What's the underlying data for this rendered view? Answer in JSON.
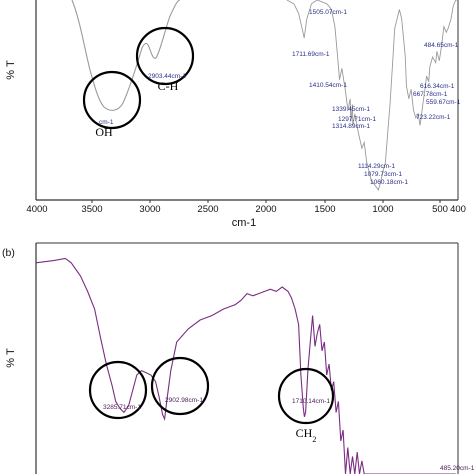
{
  "chart_data": [
    {
      "panel": "",
      "type": "line",
      "xlabel": "cm-1",
      "ylabel": "% T",
      "xlim": [
        4000,
        400
      ],
      "x_ticks": [
        "4000",
        "3500",
        "3000",
        "2500",
        "2000",
        "1500",
        "1000",
        "500",
        "400"
      ],
      "series_color": "#9a9a9a",
      "label_color": "#2a2f8a",
      "x": [
        1860,
        1800,
        1760,
        1730,
        1711.69,
        1690,
        1650,
        1600,
        1560,
        1520,
        1505.07,
        1480,
        1450,
        1430,
        1410.54,
        1390,
        1360,
        1339.45,
        1320,
        1314.89,
        1300,
        1297.71,
        1280,
        1250,
        1220,
        1200,
        1180,
        1160,
        1140,
        1114.29,
        1090,
        1080.18,
        1060,
        1040,
        1020,
        1000,
        980,
        960,
        940,
        900,
        880,
        850,
        840,
        820,
        800,
        780,
        760,
        740,
        723.22,
        700,
        680,
        667.78,
        650,
        640,
        616.34,
        590,
        580,
        559.67,
        540,
        520,
        500,
        484.65,
        460,
        440,
        420,
        400
      ],
      "values": [
        0.0,
        0.02,
        0.07,
        0.15,
        0.2,
        0.1,
        0.02,
        0.0,
        0.01,
        0.02,
        0.03,
        0.05,
        0.14,
        0.28,
        0.42,
        0.36,
        0.48,
        0.58,
        0.52,
        0.64,
        0.55,
        0.66,
        0.6,
        0.7,
        0.78,
        0.75,
        0.85,
        0.9,
        0.95,
        0.97,
        0.99,
        1.0,
        0.96,
        0.9,
        0.86,
        0.7,
        0.55,
        0.35,
        0.15,
        0.05,
        0.1,
        0.3,
        0.45,
        0.52,
        0.47,
        0.58,
        0.62,
        0.6,
        0.66,
        0.55,
        0.46,
        0.4,
        0.43,
        0.35,
        0.3,
        0.33,
        0.27,
        0.32,
        0.24,
        0.14,
        0.17,
        0.15,
        0.1,
        0.03,
        0.0,
        0.0
      ],
      "peak_labels": [
        {
          "text": "2903.44cm-1",
          "x": 2903.44
        },
        {
          "text": "1711.69cm-1",
          "x": 1711.69
        },
        {
          "text": "1505.07cm-1",
          "x": 1505.07
        },
        {
          "text": "1410.54cm-1",
          "x": 1410.54
        },
        {
          "text": "1339.45cm-1",
          "x": 1339.45
        },
        {
          "text": "1297.71cm-1",
          "x": 1297.71
        },
        {
          "text": "1314.89cm-1",
          "x": 1314.89
        },
        {
          "text": "1114.29cm-1",
          "x": 1114.29
        },
        {
          "text": "1079.73cm-1",
          "x": 1079.73
        },
        {
          "text": "1060.18cm-1",
          "x": 1060.18
        },
        {
          "text": "723.22cm-1",
          "x": 723.22
        },
        {
          "text": "616.34cm-1",
          "x": 616.34
        },
        {
          "text": "667.78cm-1",
          "x": 667.78
        },
        {
          "text": "559.67cm-1",
          "x": 559.67
        },
        {
          "text": "484.65cm-1",
          "x": 484.65
        },
        {
          "text": "cm-1",
          "x": 3286
        }
      ],
      "group_labels": [
        {
          "text": "C-H",
          "x": 2903.44
        },
        {
          "text": "OH",
          "x": 3400
        }
      ]
    },
    {
      "panel": "(b)",
      "type": "line",
      "xlabel": "",
      "ylabel": "% T",
      "xlim": [
        4000,
        400
      ],
      "series_color": "#7a2d82",
      "label_color": "#4a1a55",
      "x": [
        4000,
        3850,
        3750,
        3700,
        3620,
        3560,
        3500,
        3450,
        3400,
        3350,
        3320,
        3285.71,
        3250,
        3210,
        3180,
        3140,
        3100,
        3060,
        3020,
        2980,
        2950,
        2920,
        2902.98,
        2880,
        2850,
        2800,
        2700,
        2600,
        2500,
        2400,
        2300,
        2250,
        2200,
        2150,
        2100,
        2050,
        2000,
        1950,
        1900,
        1850,
        1820,
        1790,
        1760,
        1740,
        1720,
        1710.14,
        1700,
        1680,
        1660,
        1640,
        1620,
        1600,
        1580,
        1560,
        1540,
        1520,
        1500,
        1480,
        1460,
        1440,
        1420,
        1400,
        1380,
        1360,
        1340,
        1320,
        1300,
        1280,
        1260,
        1240,
        1220,
        1200,
        1150,
        1100,
        1050,
        1000,
        950,
        900,
        850,
        800,
        750,
        700,
        650,
        600,
        550,
        500,
        485.2,
        450,
        420
      ],
      "values": [
        96,
        97,
        98,
        96,
        90,
        83,
        75,
        62,
        50,
        40,
        33,
        30,
        28,
        31,
        37,
        45,
        47,
        46,
        45,
        42,
        35,
        27,
        25,
        35,
        47,
        60,
        66,
        70,
        72,
        75,
        77,
        79,
        82,
        81,
        82,
        83,
        84,
        83,
        85,
        83,
        80,
        75,
        68,
        45,
        30,
        26,
        28,
        48,
        60,
        72,
        58,
        64,
        68,
        56,
        60,
        45,
        50,
        38,
        42,
        28,
        33,
        15,
        20,
        0,
        12,
        0,
        8,
        0,
        10,
        0,
        6,
        0,
        0,
        0,
        0,
        0,
        0,
        0,
        0,
        0,
        0,
        0,
        0,
        0,
        0,
        0,
        0,
        0,
        0
      ],
      "peak_labels": [
        {
          "text": "3285.71cm-1",
          "x": 3285.71
        },
        {
          "text": "2902.98cm-1",
          "x": 2902.98
        },
        {
          "text": "1710.14cm-1",
          "x": 1710.14
        },
        {
          "text": "485.20cm-1",
          "x": 485.2
        }
      ],
      "group_labels": [
        {
          "text": "CH",
          "sub": "2",
          "x": 1710.14
        }
      ]
    }
  ]
}
